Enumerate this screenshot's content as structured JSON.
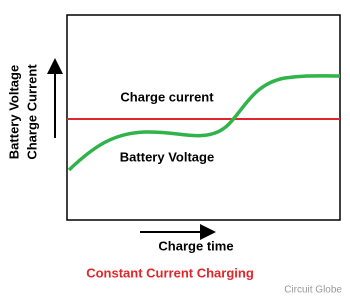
{
  "diagram": {
    "y_axis_label": [
      "Battery Voltage",
      "Charge Current"
    ],
    "line_labels": {
      "current": "Charge current",
      "voltage": "Battery Voltage"
    },
    "x_axis_label": "Charge time",
    "title": "Constant Current Charging",
    "watermark": "Circuit Globe"
  }
}
